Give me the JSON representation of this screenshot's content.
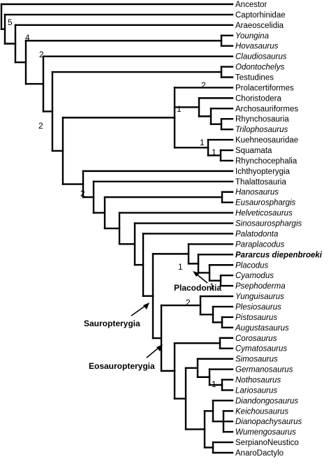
{
  "taxa": [
    {
      "name": "Ancestor",
      "style": "normal"
    },
    {
      "name": "Captorhinidae",
      "style": "normal"
    },
    {
      "name": "Araeoscelidia",
      "style": "normal"
    },
    {
      "name": "Youngina",
      "style": "italic"
    },
    {
      "name": "Hovasaurus",
      "style": "italic"
    },
    {
      "name": "Claudiosaurus",
      "style": "italic"
    },
    {
      "name": "Odontochelys",
      "style": "italic"
    },
    {
      "name": "Testudines",
      "style": "normal"
    },
    {
      "name": "Prolacertiformes",
      "style": "normal"
    },
    {
      "name": "Choristodera",
      "style": "normal"
    },
    {
      "name": "Archosauriformes",
      "style": "normal"
    },
    {
      "name": "Rhynchosauria",
      "style": "normal"
    },
    {
      "name": "Trilophosaurus",
      "style": "italic"
    },
    {
      "name": "Kuehneosauridae",
      "style": "normal"
    },
    {
      "name": "Squamata",
      "style": "normal"
    },
    {
      "name": "Rhynchocephalia",
      "style": "normal"
    },
    {
      "name": "Ichthyopterygia",
      "style": "normal"
    },
    {
      "name": "Thalattosauria",
      "style": "normal"
    },
    {
      "name": "Hanosaurus",
      "style": "italic"
    },
    {
      "name": "Eusaurosphargis",
      "style": "italic"
    },
    {
      "name": "Helveticosaurus",
      "style": "italic"
    },
    {
      "name": "Sinosaurosphargis",
      "style": "italic"
    },
    {
      "name": "Palatodonta",
      "style": "italic"
    },
    {
      "name": "Paraplacodus",
      "style": "italic"
    },
    {
      "name": "Pararcus diepenbroeki",
      "style": "bold"
    },
    {
      "name": "Placodus",
      "style": "italic"
    },
    {
      "name": "Cyamodus",
      "style": "italic"
    },
    {
      "name": "Psephoderma",
      "style": "italic"
    },
    {
      "name": "Yunguisaurus",
      "style": "italic"
    },
    {
      "name": "Plesiosaurus",
      "style": "italic"
    },
    {
      "name": "Pistosaurus",
      "style": "italic"
    },
    {
      "name": "Augustasaurus",
      "style": "italic"
    },
    {
      "name": "Corosaurus",
      "style": "italic"
    },
    {
      "name": "Cymatosaurus",
      "style": "italic"
    },
    {
      "name": "Simosaurus",
      "style": "italic"
    },
    {
      "name": "Germanosaurus",
      "style": "italic"
    },
    {
      "name": "Nothosaurus",
      "style": "italic"
    },
    {
      "name": "Lariosaurus",
      "style": "italic"
    },
    {
      "name": "Diandongosaurus",
      "style": "italic"
    },
    {
      "name": "Keichousaurus",
      "style": "italic"
    },
    {
      "name": "Dianopachysaurus",
      "style": "italic"
    },
    {
      "name": "Wumengosaurus",
      "style": "italic"
    },
    {
      "name": "SerpianoNeustico",
      "style": "normal"
    },
    {
      "name": "AnaroDactylo",
      "style": "normal"
    }
  ],
  "support_values": [
    "5",
    "4",
    "2",
    "2",
    "2",
    "1",
    "1",
    "1",
    "2",
    "1",
    "1",
    "2",
    "1"
  ],
  "clade_labels": {
    "placodontia": "Placodontia",
    "sauropterygia": "Sauropterygia",
    "eosauropterygia": "Eosauropterygia"
  }
}
